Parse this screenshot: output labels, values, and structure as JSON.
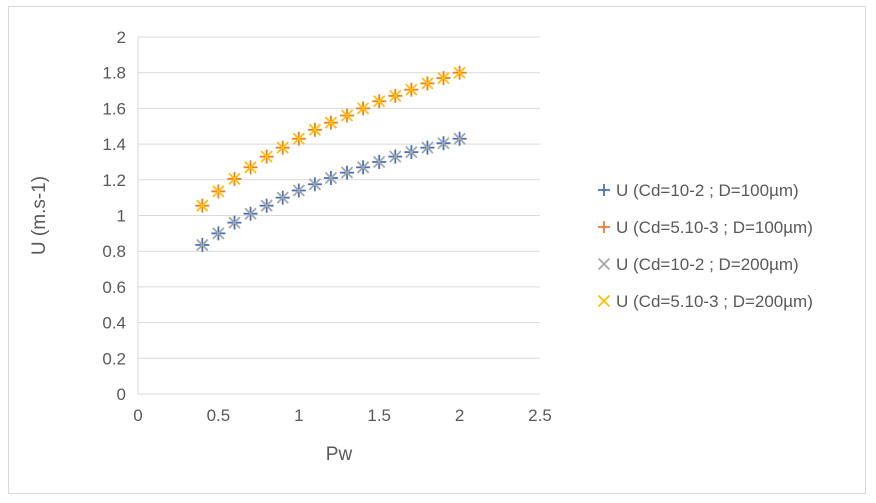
{
  "chart_data": {
    "type": "scatter",
    "xlabel": "Pw",
    "ylabel": "U (m.s-1)",
    "xlim": [
      0,
      2.5
    ],
    "ylim": [
      0,
      2
    ],
    "x_ticks": [
      "0",
      "0.5",
      "1",
      "1.5",
      "2",
      "2.5"
    ],
    "y_ticks": [
      "0",
      "0.2",
      "0.4",
      "0.6",
      "0.8",
      "1",
      "1.2",
      "1.4",
      "1.6",
      "1.8",
      "2"
    ],
    "grid": "horizontal",
    "legend_position": "right",
    "series": [
      {
        "name": "U (Cd=10-2 ; D=100µm)",
        "marker": "plus",
        "color": "#4472c4",
        "x": [
          0.4,
          0.5,
          0.6,
          0.7,
          0.8,
          0.9,
          1.0,
          1.1,
          1.2,
          1.3,
          1.4,
          1.5,
          1.6,
          1.7,
          1.8,
          1.9,
          2.0
        ],
        "y": [
          0.835,
          0.9,
          0.96,
          1.01,
          1.055,
          1.1,
          1.14,
          1.175,
          1.21,
          1.24,
          1.27,
          1.3,
          1.33,
          1.355,
          1.38,
          1.405,
          1.43
        ]
      },
      {
        "name": "U (Cd=5.10-3 ; D=100µm)",
        "marker": "plus",
        "color": "#ed7d31",
        "x": [
          0.4,
          0.5,
          0.6,
          0.7,
          0.8,
          0.9,
          1.0,
          1.1,
          1.2,
          1.3,
          1.4,
          1.5,
          1.6,
          1.7,
          1.8,
          1.9,
          2.0
        ],
        "y": [
          1.055,
          1.135,
          1.205,
          1.27,
          1.33,
          1.38,
          1.43,
          1.48,
          1.52,
          1.56,
          1.6,
          1.64,
          1.67,
          1.705,
          1.74,
          1.77,
          1.8
        ]
      },
      {
        "name": "U (Cd=10-2 ; D=200µm)",
        "marker": "x",
        "color": "#a5a5a5",
        "x": [
          0.4,
          0.5,
          0.6,
          0.7,
          0.8,
          0.9,
          1.0,
          1.1,
          1.2,
          1.3,
          1.4,
          1.5,
          1.6,
          1.7,
          1.8,
          1.9,
          2.0
        ],
        "y": [
          0.835,
          0.9,
          0.96,
          1.01,
          1.055,
          1.1,
          1.14,
          1.175,
          1.21,
          1.24,
          1.27,
          1.3,
          1.33,
          1.355,
          1.38,
          1.405,
          1.43
        ]
      },
      {
        "name": "U (Cd=5.10-3 ; D=200µm)",
        "marker": "x",
        "color": "#ffc000",
        "x": [
          0.4,
          0.5,
          0.6,
          0.7,
          0.8,
          0.9,
          1.0,
          1.1,
          1.2,
          1.3,
          1.4,
          1.5,
          1.6,
          1.7,
          1.8,
          1.9,
          2.0
        ],
        "y": [
          1.055,
          1.135,
          1.205,
          1.27,
          1.33,
          1.38,
          1.43,
          1.48,
          1.52,
          1.56,
          1.6,
          1.64,
          1.67,
          1.705,
          1.74,
          1.77,
          1.8
        ]
      }
    ]
  }
}
